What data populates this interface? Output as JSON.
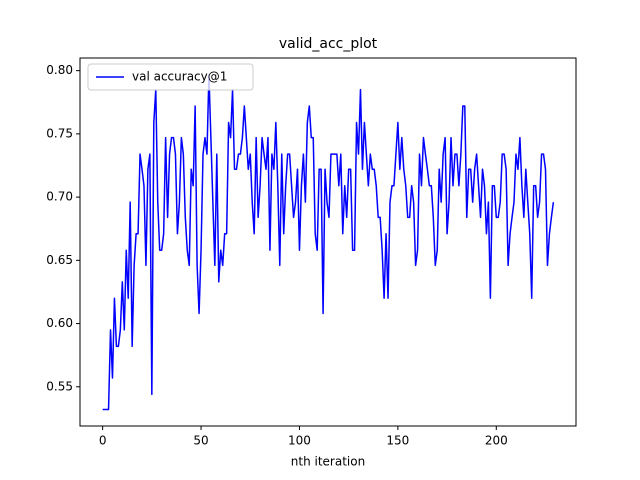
{
  "chart_data": {
    "type": "line",
    "title": "valid_acc_plot",
    "x_label": "nth iteration",
    "legend": "upper left",
    "x": [
      0,
      1,
      2,
      3,
      4,
      5,
      6,
      7,
      8,
      9,
      10,
      11,
      12,
      13,
      14,
      15,
      16,
      17,
      18,
      19,
      20,
      21,
      22,
      23,
      24,
      25,
      26,
      27,
      28,
      29,
      30,
      31,
      32,
      33,
      34,
      35,
      36,
      37,
      38,
      39,
      40,
      41,
      42,
      43,
      44,
      45,
      46,
      47,
      48,
      49,
      50,
      51,
      52,
      53,
      54,
      55,
      56,
      57,
      58,
      59,
      60,
      61,
      62,
      63,
      64,
      65,
      66,
      67,
      68,
      69,
      70,
      71,
      72,
      73,
      74,
      75,
      76,
      77,
      78,
      79,
      80,
      81,
      82,
      83,
      84,
      85,
      86,
      87,
      88,
      89,
      90,
      91,
      92,
      93,
      94,
      95,
      96,
      97,
      98,
      99,
      100,
      101,
      102,
      103,
      104,
      105,
      106,
      107,
      108,
      109,
      110,
      111,
      112,
      113,
      114,
      115,
      116,
      117,
      118,
      119,
      120,
      121,
      122,
      123,
      124,
      125,
      126,
      127,
      128,
      129,
      130,
      131,
      132,
      133,
      134,
      135,
      136,
      137,
      138,
      139,
      140,
      141,
      142,
      143,
      144,
      145,
      146,
      147,
      148,
      149,
      150,
      151,
      152,
      153,
      154,
      155,
      156,
      157,
      158,
      159,
      160,
      161,
      162,
      163,
      164,
      165,
      166,
      167,
      168,
      169,
      170,
      171,
      172,
      173,
      174,
      175,
      176,
      177,
      178,
      179,
      180,
      181,
      182,
      183,
      184,
      185,
      186,
      187,
      188,
      189,
      190,
      191,
      192,
      193,
      194,
      195,
      196,
      197,
      198,
      199,
      200,
      201,
      202,
      203,
      204,
      205,
      206,
      207,
      208,
      209,
      210,
      211,
      212,
      213,
      214,
      215,
      216,
      217,
      218,
      219,
      220,
      221,
      222,
      223,
      224,
      225,
      226,
      227,
      228,
      229
    ],
    "series": [
      {
        "name": "val accuracy@1",
        "color": "#0000ff",
        "values": [
          0.532,
          0.532,
          0.532,
          0.532,
          0.595,
          0.557,
          0.62,
          0.582,
          0.582,
          0.595,
          0.633,
          0.595,
          0.658,
          0.62,
          0.696,
          0.582,
          0.646,
          0.671,
          0.671,
          0.734,
          0.722,
          0.709,
          0.646,
          0.722,
          0.734,
          0.544,
          0.759,
          0.785,
          0.696,
          0.658,
          0.658,
          0.671,
          0.747,
          0.684,
          0.734,
          0.747,
          0.747,
          0.734,
          0.671,
          0.696,
          0.747,
          0.734,
          0.684,
          0.658,
          0.646,
          0.722,
          0.709,
          0.772,
          0.646,
          0.608,
          0.658,
          0.734,
          0.747,
          0.734,
          0.797,
          0.747,
          0.696,
          0.646,
          0.734,
          0.633,
          0.658,
          0.646,
          0.671,
          0.671,
          0.759,
          0.747,
          0.785,
          0.722,
          0.722,
          0.734,
          0.734,
          0.747,
          0.772,
          0.747,
          0.722,
          0.734,
          0.696,
          0.671,
          0.747,
          0.684,
          0.709,
          0.747,
          0.734,
          0.722,
          0.747,
          0.658,
          0.734,
          0.722,
          0.759,
          0.709,
          0.646,
          0.734,
          0.671,
          0.709,
          0.734,
          0.734,
          0.709,
          0.684,
          0.696,
          0.722,
          0.658,
          0.709,
          0.734,
          0.696,
          0.759,
          0.772,
          0.747,
          0.747,
          0.671,
          0.658,
          0.722,
          0.722,
          0.608,
          0.722,
          0.696,
          0.684,
          0.734,
          0.734,
          0.734,
          0.734,
          0.709,
          0.734,
          0.671,
          0.709,
          0.684,
          0.722,
          0.722,
          0.658,
          0.658,
          0.759,
          0.734,
          0.785,
          0.722,
          0.759,
          0.734,
          0.709,
          0.734,
          0.722,
          0.722,
          0.709,
          0.684,
          0.684,
          0.658,
          0.62,
          0.671,
          0.62,
          0.696,
          0.709,
          0.709,
          0.734,
          0.759,
          0.722,
          0.747,
          0.722,
          0.709,
          0.684,
          0.684,
          0.709,
          0.696,
          0.646,
          0.658,
          0.734,
          0.709,
          0.747,
          0.734,
          0.722,
          0.709,
          0.709,
          0.684,
          0.646,
          0.658,
          0.722,
          0.696,
          0.734,
          0.747,
          0.671,
          0.696,
          0.747,
          0.709,
          0.734,
          0.734,
          0.709,
          0.734,
          0.772,
          0.772,
          0.684,
          0.722,
          0.722,
          0.696,
          0.722,
          0.734,
          0.709,
          0.684,
          0.722,
          0.709,
          0.671,
          0.696,
          0.62,
          0.709,
          0.709,
          0.684,
          0.684,
          0.696,
          0.734,
          0.734,
          0.722,
          0.646,
          0.671,
          0.684,
          0.696,
          0.734,
          0.722,
          0.747,
          0.709,
          0.684,
          0.722,
          0.696,
          0.671,
          0.62,
          0.709,
          0.709,
          0.684,
          0.696,
          0.734,
          0.734,
          0.722,
          0.646,
          0.671,
          0.684,
          0.696
        ]
      }
    ],
    "xlim": [
      -11.5,
      240.5
    ],
    "xticks": [
      0,
      50,
      100,
      150,
      200
    ],
    "ylim": [
      0.519,
      0.81
    ],
    "yticks": [
      0.55,
      {
        "value": 0.6,
        "label": "0.60"
      },
      0.65,
      {
        "value": 0.7,
        "label": "0.70"
      },
      0.75,
      {
        "value": 0.8,
        "label": "0.80"
      }
    ]
  }
}
